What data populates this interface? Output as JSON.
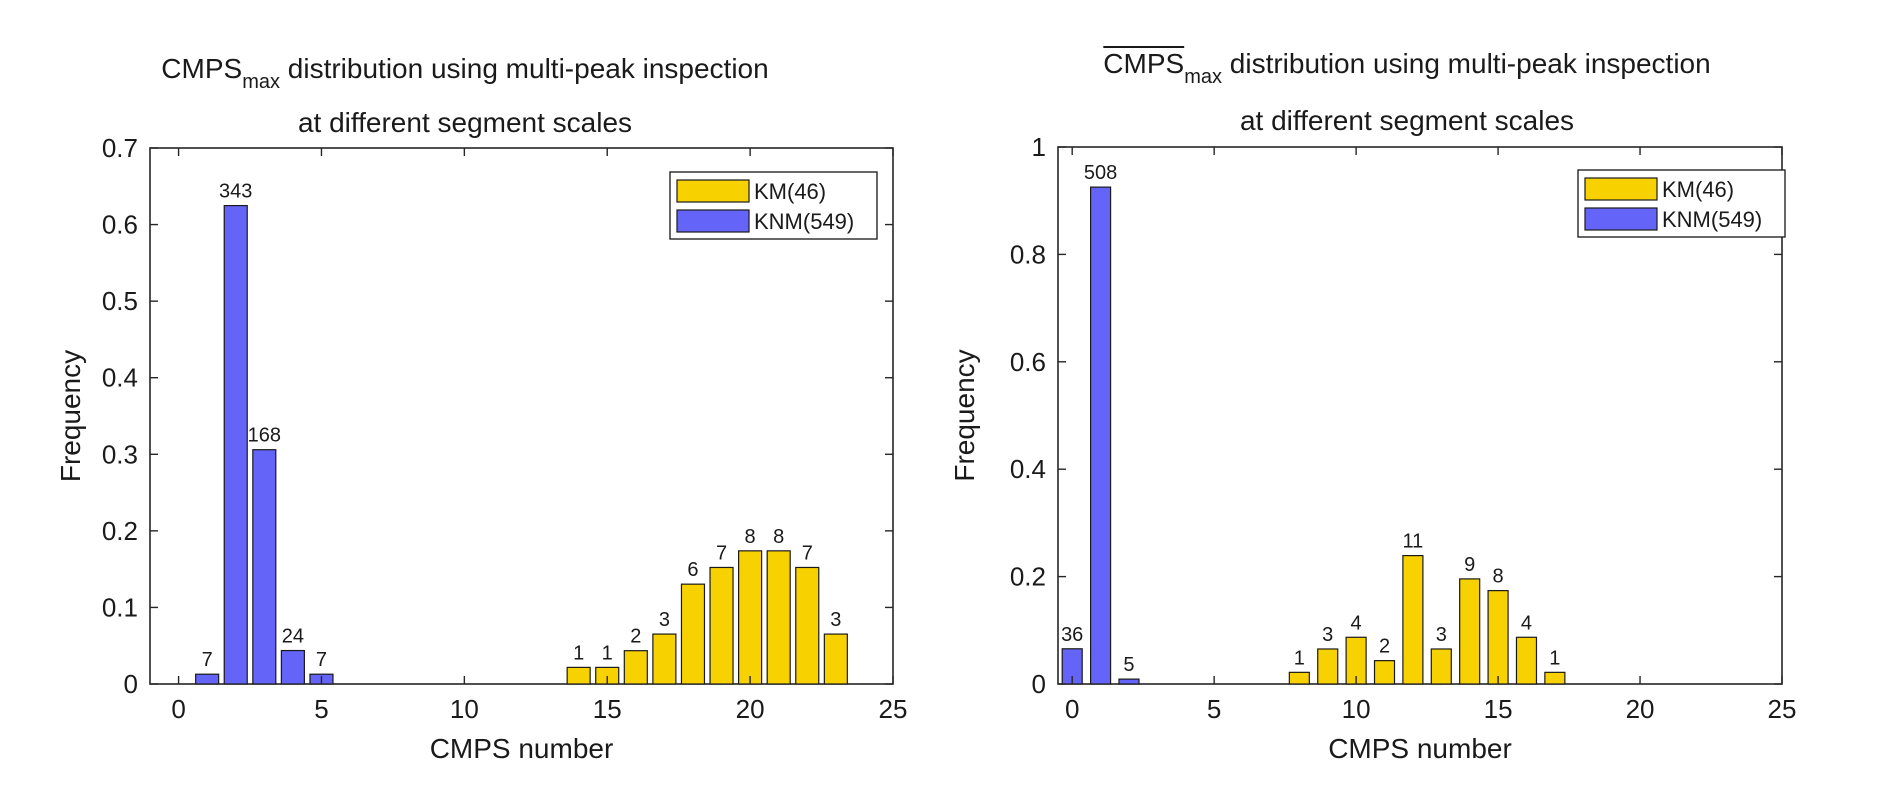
{
  "colors": {
    "km": "#f8d100",
    "knm": "#6464f8",
    "axis": "#262626"
  },
  "chart_data": [
    {
      "type": "bar",
      "title_main": "CMPS",
      "title_sub": "max",
      "title_rest": " distribution using multi-peak inspection",
      "title_line2": "at different segment scales",
      "xlabel": "CMPS number",
      "ylabel": "Frequency",
      "xlim": [
        -1,
        25
      ],
      "ylim": [
        0,
        0.7
      ],
      "xticks": [
        0,
        5,
        10,
        15,
        20,
        25
      ],
      "yticks": [
        0,
        0.1,
        0.2,
        0.3,
        0.4,
        0.5,
        0.6,
        0.7
      ],
      "ytick_labels": [
        "0",
        "0.1",
        "0.2",
        "0.3",
        "0.4",
        "0.5",
        "0.6",
        "0.7"
      ],
      "legend_position": "top-right",
      "series": [
        {
          "name": "KM(46)",
          "color": "#f8d100",
          "x": [
            14,
            15,
            16,
            17,
            18,
            19,
            20,
            21,
            22,
            23
          ],
          "values": [
            0.0217,
            0.0217,
            0.0435,
            0.0652,
            0.1304,
            0.1522,
            0.1739,
            0.1739,
            0.1522,
            0.0652
          ],
          "labels": [
            "1",
            "1",
            "2",
            "3",
            "6",
            "7",
            "8",
            "8",
            "7",
            "3"
          ]
        },
        {
          "name": "KNM(549)",
          "color": "#6464f8",
          "x": [
            1,
            2,
            3,
            4,
            5
          ],
          "values": [
            0.0128,
            0.6248,
            0.306,
            0.0437,
            0.0128
          ],
          "labels": [
            "7",
            "343",
            "168",
            "24",
            "7"
          ]
        }
      ]
    },
    {
      "type": "bar",
      "title_main": "CMPS",
      "title_sub": "max",
      "title_rest": " distribution using multi-peak inspection",
      "title_line2": "at different segment scales",
      "xlabel": "CMPS number",
      "ylabel": "Frequency",
      "xlim": [
        -0.5,
        25
      ],
      "ylim": [
        0,
        1
      ],
      "xticks": [
        0,
        5,
        10,
        15,
        20,
        25
      ],
      "yticks": [
        0,
        0.2,
        0.4,
        0.6,
        0.8,
        1
      ],
      "ytick_labels": [
        "0",
        "0.2",
        "0.4",
        "0.6",
        "0.8",
        "1"
      ],
      "legend_position": "top-right",
      "series": [
        {
          "name": "KM(46)",
          "color": "#f8d100",
          "x": [
            8,
            9,
            10,
            11,
            12,
            13,
            14,
            15,
            16,
            17
          ],
          "values": [
            0.0217,
            0.0652,
            0.087,
            0.0435,
            0.2391,
            0.0652,
            0.1957,
            0.1739,
            0.087,
            0.0217
          ],
          "labels": [
            "1",
            "3",
            "4",
            "2",
            "11",
            "3",
            "9",
            "8",
            "4",
            "1"
          ]
        },
        {
          "name": "KNM(549)",
          "color": "#6464f8",
          "x": [
            0,
            1,
            2
          ],
          "values": [
            0.0656,
            0.9253,
            0.0091
          ],
          "labels": [
            "36",
            "508",
            "5"
          ]
        }
      ]
    }
  ]
}
